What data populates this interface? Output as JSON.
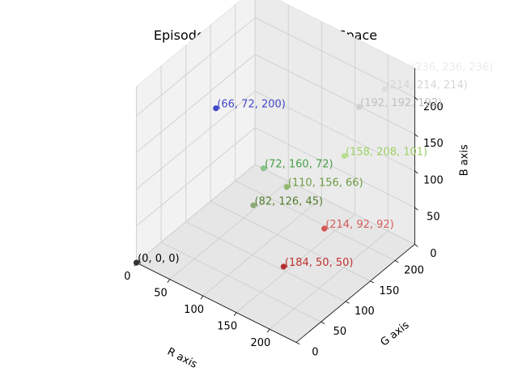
{
  "chart_data": {
    "type": "scatter",
    "title": "Episode Observation Colour Space",
    "xlabel": "R axis",
    "ylabel": "G axis",
    "zlabel": "B axis",
    "xlim": [
      0,
      240
    ],
    "ylim": [
      0,
      240
    ],
    "zlim": [
      0,
      240
    ],
    "x_ticks": [
      "0",
      "50",
      "100",
      "150",
      "200"
    ],
    "y_ticks": [
      "0",
      "50",
      "100",
      "150",
      "200"
    ],
    "z_ticks": [
      "0",
      "50",
      "100",
      "150",
      "200"
    ],
    "grid": true,
    "points": [
      {
        "r": 0,
        "g": 0,
        "b": 0,
        "label": "(0, 0, 0)",
        "color": "#333333",
        "text_color": "#000000"
      },
      {
        "r": 184,
        "g": 50,
        "b": 50,
        "label": "(184, 50, 50)",
        "color": "#b42f2f",
        "text_color": "#c0302d"
      },
      {
        "r": 214,
        "g": 92,
        "b": 92,
        "label": "(214, 92, 92)",
        "color": "#d65656",
        "text_color": "#d65c5c"
      },
      {
        "r": 66,
        "g": 72,
        "b": 200,
        "label": "(66, 72, 200)",
        "color": "#4146c6",
        "text_color": "#4248c8"
      },
      {
        "r": 82,
        "g": 126,
        "b": 45,
        "label": "(82, 126, 45)",
        "color": "#8aaa76",
        "text_color": "#527e2d"
      },
      {
        "r": 110,
        "g": 156,
        "b": 66,
        "label": "(110, 156, 66)",
        "color": "#94b870",
        "text_color": "#6e9c42"
      },
      {
        "r": 72,
        "g": 160,
        "b": 72,
        "label": "(72, 160, 72)",
        "color": "#8ec48e",
        "text_color": "#48a048"
      },
      {
        "r": 158,
        "g": 208,
        "b": 101,
        "label": "(158, 208, 101)",
        "color": "#b9dd90",
        "text_color": "#9ed065"
      },
      {
        "r": 192,
        "g": 192,
        "b": 192,
        "label": "(192, 192, 192)",
        "color": "#d0d0d0",
        "text_color": "#c0c0c0"
      },
      {
        "r": 214,
        "g": 214,
        "b": 214,
        "label": "(214, 214, 214)",
        "color": "#dddddd",
        "text_color": "#d6d6d6"
      },
      {
        "r": 236,
        "g": 236,
        "b": 236,
        "label": "(236, 236, 236)",
        "color": "#ececec",
        "text_color": "#ececec"
      }
    ]
  }
}
